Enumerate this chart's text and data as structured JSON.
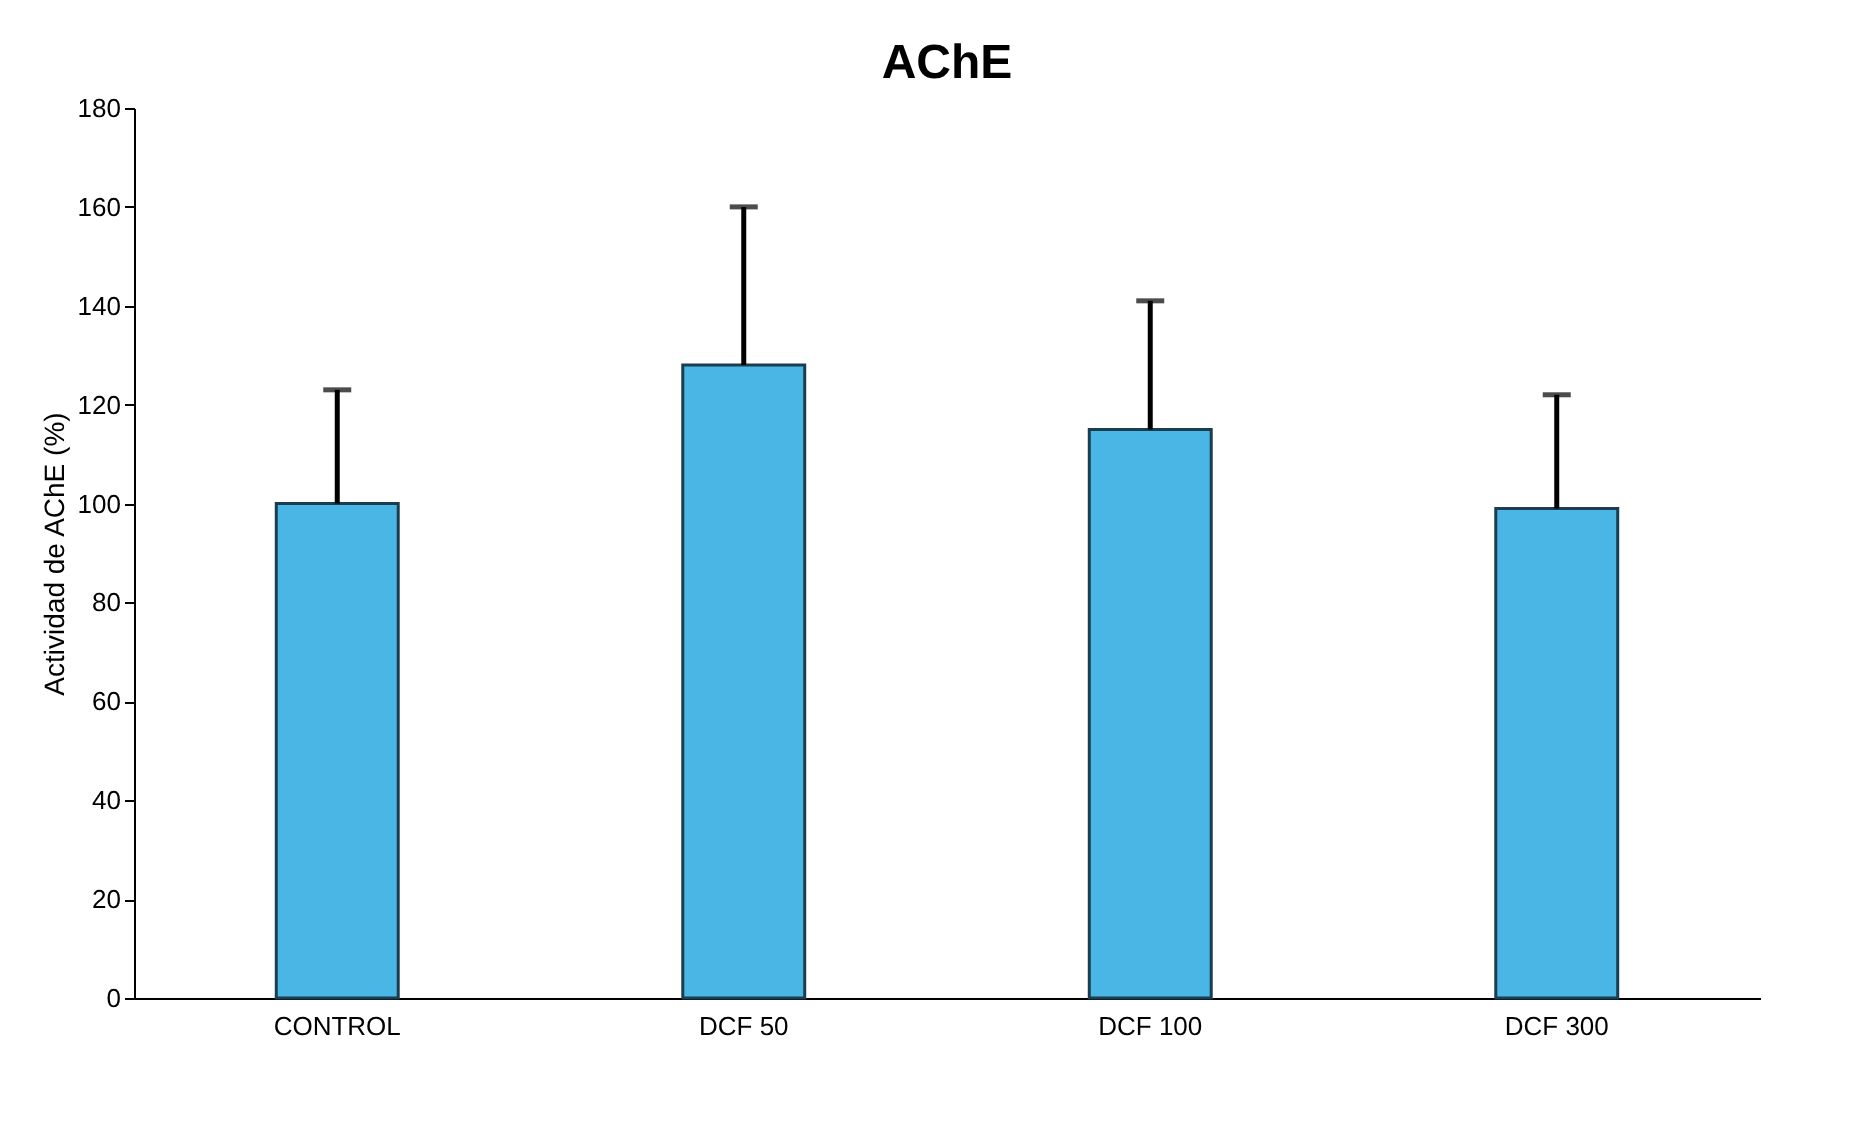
{
  "chart_data": {
    "type": "bar",
    "title": "AChE",
    "ylabel": "Actividad de AChE (%)",
    "categories": [
      "CONTROL",
      "DCF 50",
      "DCF 100",
      "DCF 300"
    ],
    "values": [
      100,
      128,
      115,
      99
    ],
    "errors": [
      [
        100,
        123
      ],
      [
        128,
        160
      ],
      [
        115,
        141
      ],
      [
        99,
        122
      ]
    ],
    "color": "#4ab6e6",
    "ylim": [
      0,
      180
    ],
    "yticks": [
      0,
      20,
      40,
      60,
      80,
      100,
      120,
      140,
      160,
      180
    ],
    "grid": false
  }
}
